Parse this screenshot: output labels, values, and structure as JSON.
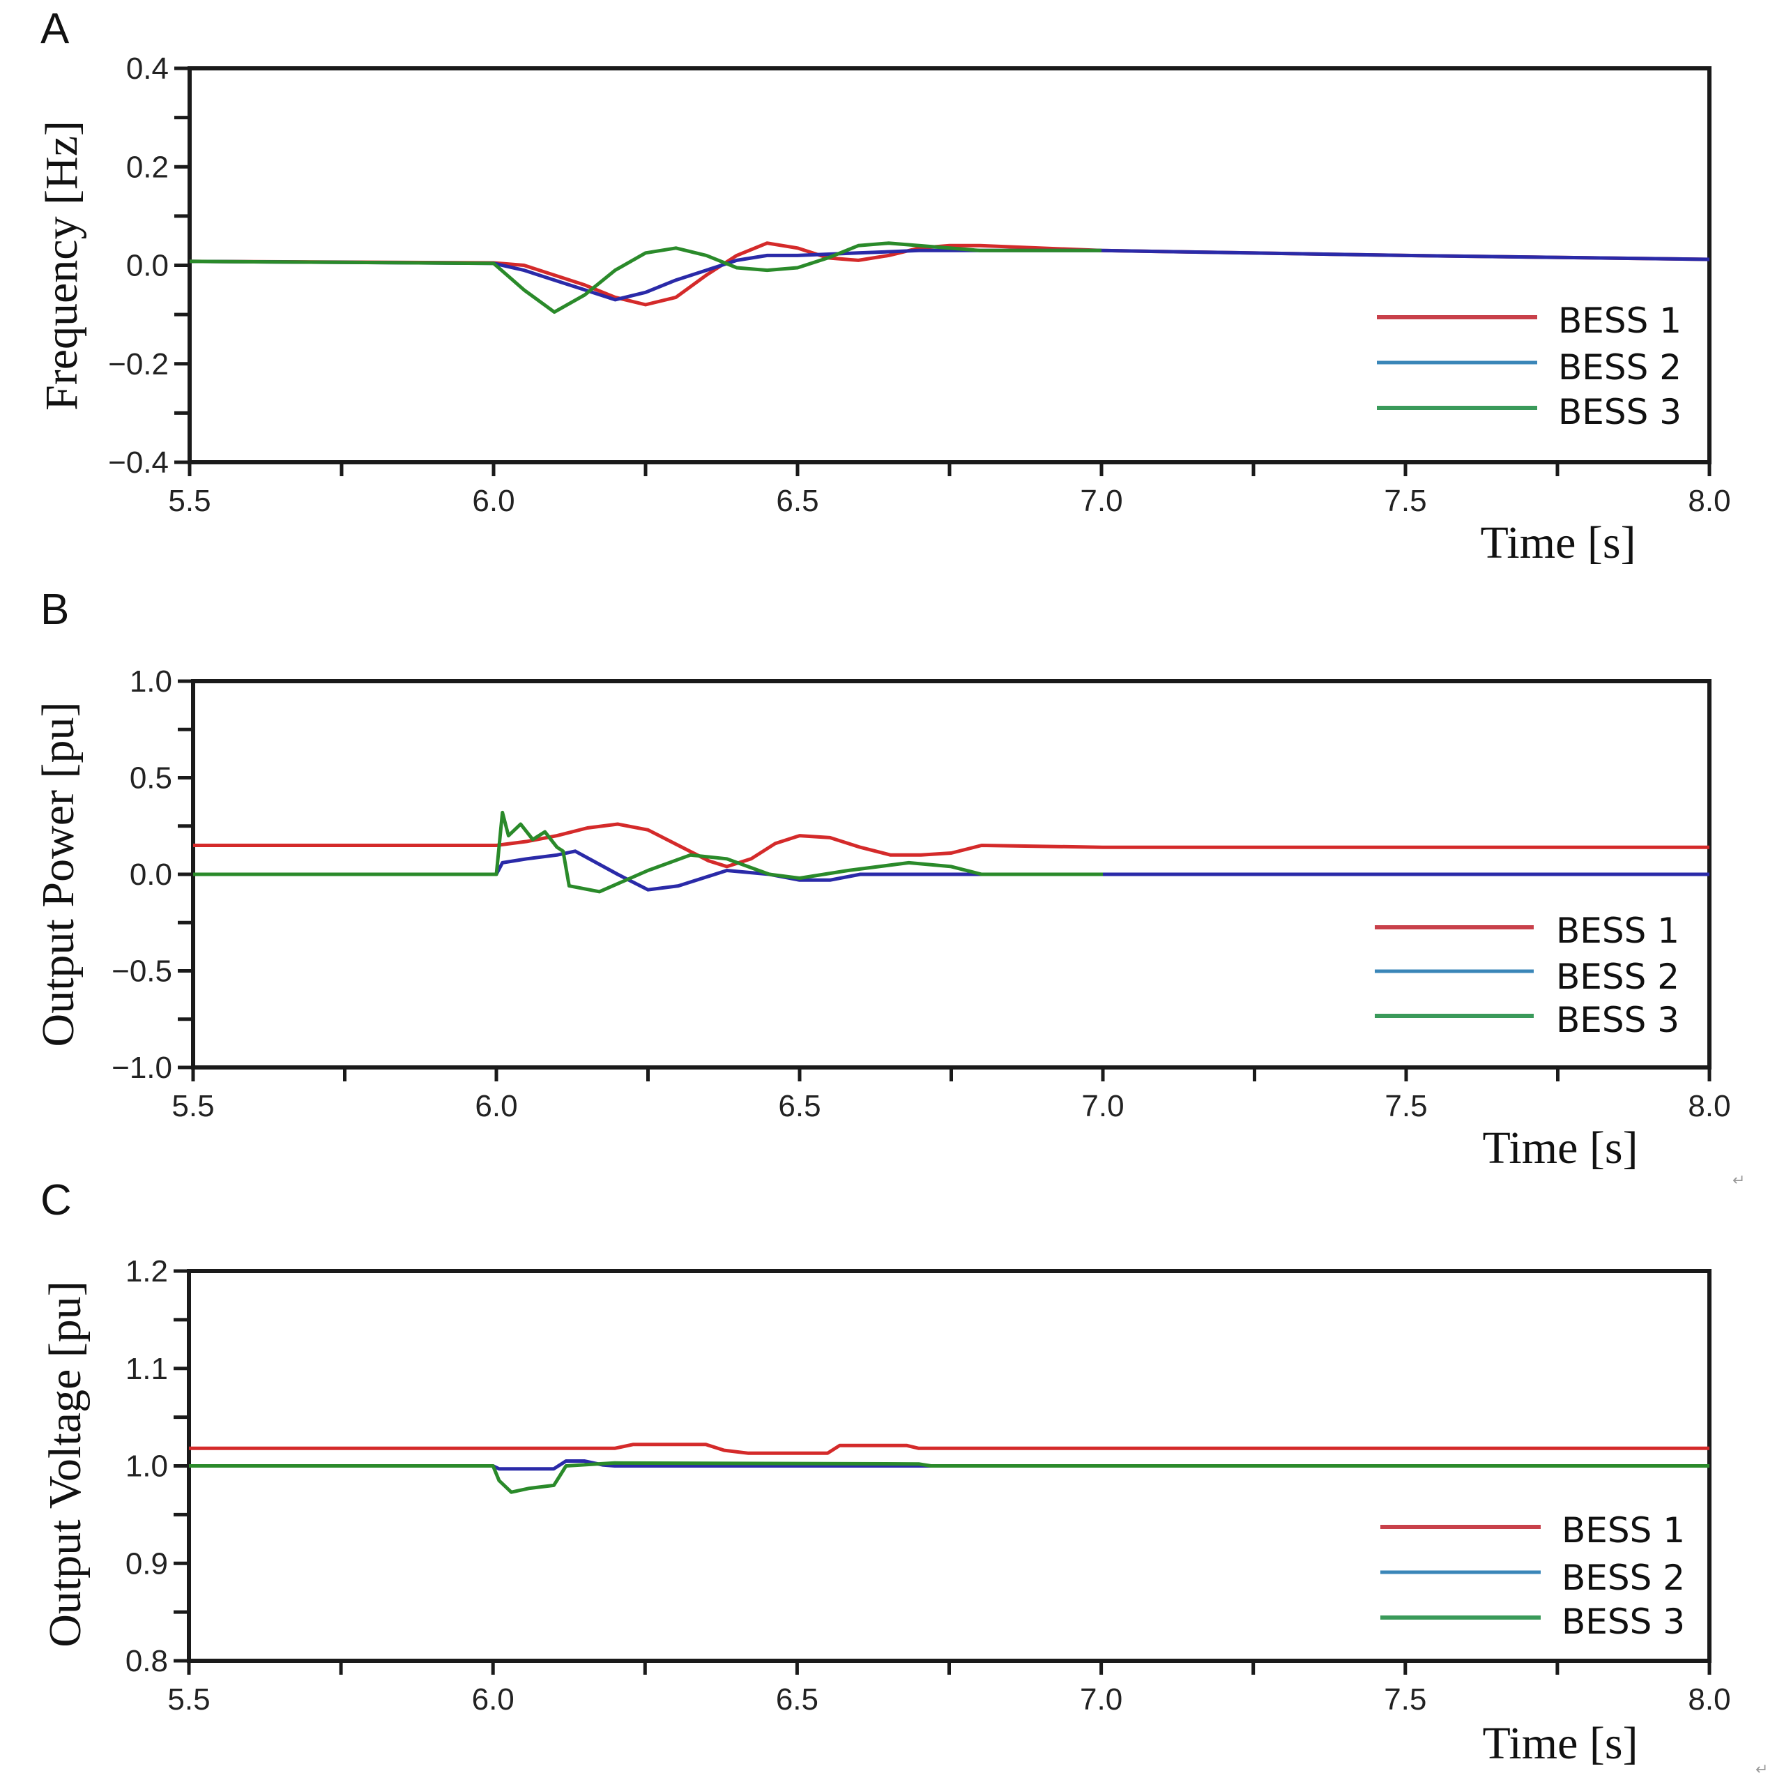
{
  "figure": {
    "return_marks": [
      "↵",
      "↵"
    ]
  },
  "chart_data": [
    {
      "panel": "A",
      "type": "line",
      "title": "",
      "xlabel": "Time [s]",
      "ylabel": "Frequency [Hz]",
      "xlim": [
        5.5,
        8.0
      ],
      "ylim": [
        -0.4,
        0.4
      ],
      "x_ticks": [
        "5.5",
        "6.0",
        "6.5",
        "7.0",
        "7.5",
        "8.0"
      ],
      "x_tick_values": [
        5.5,
        6.0,
        6.5,
        7.0,
        7.5,
        8.0
      ],
      "x_minor": [
        5.75,
        6.25,
        6.75,
        7.25,
        7.75
      ],
      "y_ticks": [
        "0.4",
        "0.2",
        "0.0",
        "−0.2",
        "−0.4"
      ],
      "y_tick_values": [
        0.4,
        0.2,
        0.0,
        -0.2,
        -0.4
      ],
      "y_minor": [
        0.3,
        0.1,
        -0.1,
        -0.3
      ],
      "grid": false,
      "legend_position": "bottom-right",
      "series": [
        {
          "name": "BESS 1",
          "color": "#d42a2a",
          "x": [
            5.5,
            6.0,
            6.05,
            6.1,
            6.15,
            6.2,
            6.25,
            6.3,
            6.35,
            6.4,
            6.45,
            6.5,
            6.55,
            6.6,
            6.65,
            6.7,
            6.75,
            6.8,
            7.0,
            7.5,
            8.0
          ],
          "y": [
            0.008,
            0.005,
            0.0,
            -0.02,
            -0.04,
            -0.065,
            -0.08,
            -0.065,
            -0.02,
            0.02,
            0.045,
            0.035,
            0.015,
            0.01,
            0.02,
            0.035,
            0.04,
            0.04,
            0.03,
            0.02,
            0.012
          ]
        },
        {
          "name": "BESS 2",
          "color": "#2a2aa8",
          "x": [
            5.5,
            6.0,
            6.05,
            6.1,
            6.15,
            6.2,
            6.25,
            6.3,
            6.35,
            6.4,
            6.45,
            6.5,
            6.6,
            6.7,
            7.0,
            7.5,
            8.0
          ],
          "y": [
            0.008,
            0.004,
            -0.01,
            -0.03,
            -0.05,
            -0.07,
            -0.055,
            -0.03,
            -0.01,
            0.01,
            0.02,
            0.02,
            0.025,
            0.03,
            0.03,
            0.02,
            0.012
          ]
        },
        {
          "name": "BESS 3",
          "color": "#2a8a2a",
          "x": [
            5.5,
            6.0,
            6.05,
            6.1,
            6.15,
            6.2,
            6.25,
            6.3,
            6.35,
            6.4,
            6.45,
            6.5,
            6.55,
            6.6,
            6.65,
            6.7,
            6.8,
            7.0
          ],
          "y": [
            0.008,
            0.004,
            -0.05,
            -0.095,
            -0.06,
            -0.01,
            0.025,
            0.035,
            0.02,
            -0.005,
            -0.01,
            -0.005,
            0.015,
            0.04,
            0.045,
            0.04,
            0.03,
            0.03
          ]
        }
      ]
    },
    {
      "panel": "B",
      "type": "line",
      "title": "",
      "xlabel": "Time [s]",
      "ylabel": "Output Power [pu]",
      "xlim": [
        5.5,
        8.0
      ],
      "ylim": [
        -1.0,
        1.0
      ],
      "x_ticks": [
        "5.5",
        "6.0",
        "6.5",
        "7.0",
        "7.5",
        "8.0"
      ],
      "x_tick_values": [
        5.5,
        6.0,
        6.5,
        7.0,
        7.5,
        8.0
      ],
      "x_minor": [
        5.75,
        6.25,
        6.75,
        7.25,
        7.75
      ],
      "y_ticks": [
        "1.0",
        "0.5",
        "0.0",
        "−0.5",
        "−1.0"
      ],
      "y_tick_values": [
        1.0,
        0.5,
        0.0,
        -0.5,
        -1.0
      ],
      "y_minor": [
        0.75,
        0.25,
        -0.25,
        -0.75
      ],
      "grid": false,
      "legend_position": "bottom-right",
      "series": [
        {
          "name": "BESS 1",
          "color": "#d42a2a",
          "x": [
            5.5,
            6.0,
            6.05,
            6.1,
            6.15,
            6.2,
            6.25,
            6.3,
            6.35,
            6.38,
            6.42,
            6.46,
            6.5,
            6.55,
            6.6,
            6.65,
            6.7,
            6.75,
            6.8,
            7.0,
            7.5,
            8.0
          ],
          "y": [
            0.15,
            0.15,
            0.17,
            0.2,
            0.24,
            0.26,
            0.23,
            0.15,
            0.07,
            0.04,
            0.08,
            0.16,
            0.2,
            0.19,
            0.14,
            0.1,
            0.1,
            0.11,
            0.15,
            0.14,
            0.14,
            0.14
          ]
        },
        {
          "name": "BESS 2",
          "color": "#2a2aa8",
          "x": [
            5.5,
            6.0,
            6.01,
            6.05,
            6.1,
            6.13,
            6.2,
            6.25,
            6.3,
            6.38,
            6.45,
            6.5,
            6.55,
            6.6,
            6.7,
            7.0,
            8.0
          ],
          "y": [
            0.0,
            0.0,
            0.06,
            0.08,
            0.1,
            0.12,
            0.0,
            -0.08,
            -0.06,
            0.02,
            0.0,
            -0.03,
            -0.03,
            0.0,
            0.0,
            0.0,
            0.0
          ]
        },
        {
          "name": "BESS 3",
          "color": "#2a8a2a",
          "x": [
            5.5,
            6.0,
            6.01,
            6.02,
            6.04,
            6.06,
            6.08,
            6.1,
            6.11,
            6.12,
            6.17,
            6.25,
            6.32,
            6.38,
            6.45,
            6.5,
            6.58,
            6.68,
            6.75,
            6.8,
            7.0
          ],
          "y": [
            0.0,
            0.0,
            0.32,
            0.2,
            0.26,
            0.18,
            0.22,
            0.14,
            0.12,
            -0.06,
            -0.09,
            0.02,
            0.1,
            0.08,
            0.0,
            -0.02,
            0.02,
            0.06,
            0.04,
            0.0,
            0.0
          ]
        }
      ]
    },
    {
      "panel": "C",
      "type": "line",
      "title": "",
      "xlabel": "Time [s]",
      "ylabel": "Output Voltage [pu]",
      "xlim": [
        5.5,
        8.0
      ],
      "ylim": [
        0.8,
        1.2
      ],
      "x_ticks": [
        "5.5",
        "6.0",
        "6.5",
        "7.0",
        "7.5",
        "8.0"
      ],
      "x_tick_values": [
        5.5,
        6.0,
        6.5,
        7.0,
        7.5,
        8.0
      ],
      "x_minor": [
        5.75,
        6.25,
        6.75,
        7.25,
        7.75
      ],
      "y_ticks": [
        "1.2",
        "1.1",
        "1.0",
        "0.9",
        "0.8"
      ],
      "y_tick_values": [
        1.2,
        1.1,
        1.0,
        0.9,
        0.8
      ],
      "y_minor": [
        1.15,
        1.05,
        0.95,
        0.85
      ],
      "grid": false,
      "legend_position": "bottom-right",
      "series": [
        {
          "name": "BESS 1",
          "color": "#d42a2a",
          "x": [
            5.5,
            6.2,
            6.23,
            6.35,
            6.38,
            6.42,
            6.55,
            6.57,
            6.68,
            6.7,
            8.0
          ],
          "y": [
            1.018,
            1.018,
            1.022,
            1.022,
            1.016,
            1.013,
            1.013,
            1.021,
            1.021,
            1.018,
            1.018
          ]
        },
        {
          "name": "BESS 2",
          "color": "#2a2aa8",
          "x": [
            5.5,
            6.0,
            6.01,
            6.1,
            6.12,
            6.15,
            6.18,
            6.2,
            8.0
          ],
          "y": [
            1.0,
            1.0,
            0.997,
            0.997,
            1.005,
            1.005,
            1.001,
            1.0,
            1.0
          ]
        },
        {
          "name": "BESS 3",
          "color": "#2a8a2a",
          "x": [
            5.5,
            6.0,
            6.01,
            6.03,
            6.06,
            6.1,
            6.11,
            6.12,
            6.2,
            6.7,
            6.72,
            8.0
          ],
          "y": [
            1.0,
            1.0,
            0.985,
            0.973,
            0.977,
            0.98,
            0.99,
            1.0,
            1.003,
            1.002,
            1.0,
            1.0
          ]
        }
      ]
    }
  ]
}
